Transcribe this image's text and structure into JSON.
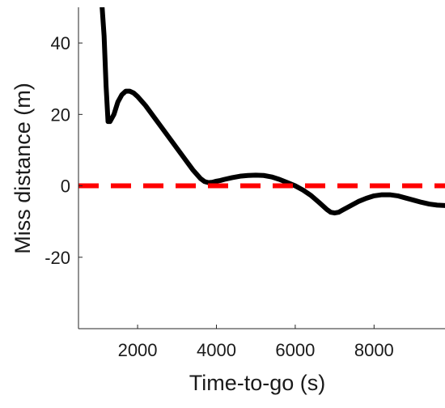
{
  "chart_data": {
    "type": "line",
    "title": "",
    "xlabel": "Time-to-go (s)",
    "ylabel": "Miss distance (m)",
    "xlim": [
      500,
      9800
    ],
    "ylim": [
      -40,
      50
    ],
    "xticks": [
      2000,
      4000,
      6000,
      8000
    ],
    "yticks": [
      -20,
      0,
      20,
      40
    ],
    "xtick_labels": [
      "2000",
      "4000",
      "6000",
      "8000"
    ],
    "ytick_labels": [
      "-20",
      "0",
      "20",
      "40"
    ],
    "grid": false,
    "series": [
      {
        "style": "solid",
        "color": "#000000",
        "x": [
          1100,
          1150,
          1200,
          1250,
          1300,
          1400,
          1500,
          1600,
          1700,
          1800,
          1900,
          2000,
          2200,
          2400,
          2600,
          2800,
          3000,
          3200,
          3400,
          3600,
          3700,
          3800,
          3900,
          4000,
          4100,
          4200,
          4400,
          4600,
          4800,
          5000,
          5200,
          5400,
          5600,
          5800,
          6000,
          6200,
          6400,
          6600,
          6800,
          6900,
          7000,
          7100,
          7200,
          7400,
          7600,
          7800,
          8000,
          8200,
          8400,
          8600,
          8800,
          9000,
          9200,
          9400,
          9600,
          9800
        ],
        "y": [
          50,
          42,
          28,
          18,
          18,
          20,
          23.5,
          25.5,
          26.5,
          26.5,
          26,
          25,
          22.5,
          19.5,
          16.5,
          13.5,
          10.5,
          7.5,
          4.5,
          2,
          1.2,
          0.9,
          1,
          1.3,
          1.5,
          1.8,
          2.3,
          2.7,
          2.9,
          3,
          2.9,
          2.5,
          1.8,
          0.9,
          0,
          -1.2,
          -2.7,
          -4.6,
          -6.6,
          -7.4,
          -7.6,
          -7.4,
          -6.8,
          -5.6,
          -4.4,
          -3.5,
          -2.8,
          -2.5,
          -2.5,
          -2.8,
          -3.4,
          -4,
          -4.6,
          -5.1,
          -5.4,
          -5.5
        ]
      },
      {
        "style": "dashed",
        "color": "#ff0000",
        "x": [
          500,
          9800
        ],
        "y": [
          0,
          0
        ]
      }
    ]
  }
}
